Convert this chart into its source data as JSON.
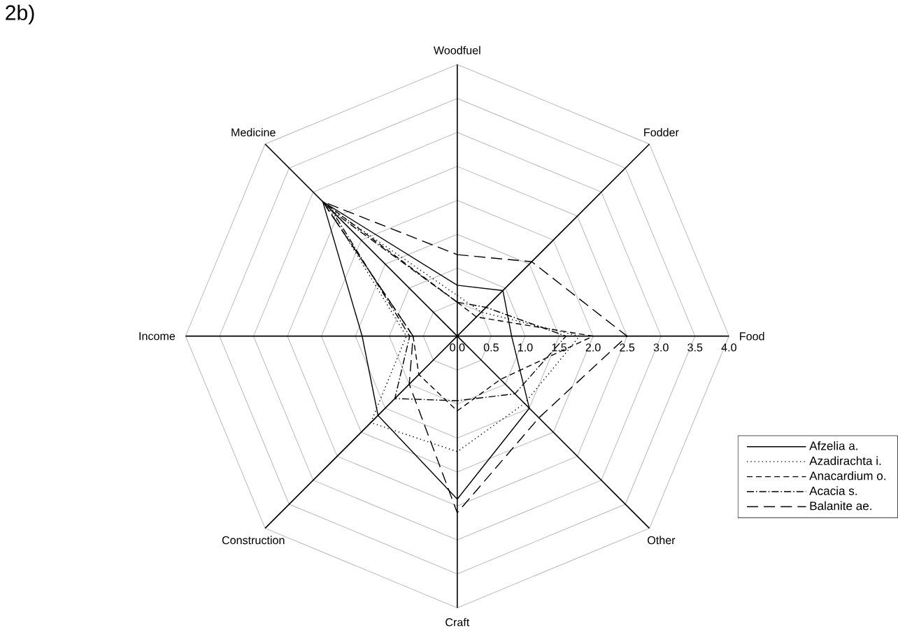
{
  "chart_data": {
    "type": "radar",
    "title": "2b)",
    "categories": [
      "Woodfuel",
      "Fodder",
      "Food",
      "Other",
      "Craft",
      "Construction",
      "Income",
      "Medicine"
    ],
    "ylim": [
      0,
      4
    ],
    "yticks": [
      {
        "value": 0,
        "label": "0.0"
      },
      {
        "value": 0.5,
        "label": "0.5"
      },
      {
        "value": 1,
        "label": "1.0"
      },
      {
        "value": 1.5,
        "label": "1.5"
      },
      {
        "value": 2,
        "label": "2.0"
      },
      {
        "value": 2.5,
        "label": "2.5"
      },
      {
        "value": 3,
        "label": "3.0"
      },
      {
        "value": 3.5,
        "label": "3.5"
      },
      {
        "value": 4,
        "label": "4.0"
      }
    ],
    "grid": true,
    "legend": "bottom right",
    "marker": "none",
    "series": [
      {
        "name": "Afzelia a.",
        "color": "#000000",
        "line_style": "solid",
        "values": [
          0.75,
          0.95,
          0.8,
          1.5,
          2.4,
          1.65,
          1.4,
          2.8
        ]
      },
      {
        "name": "Azadirachta i.",
        "color": "#000000",
        "line_style": "dotted",
        "values": [
          0.6,
          0.5,
          1.8,
          1.4,
          1.7,
          1.8,
          0.75,
          2.7
        ]
      },
      {
        "name": "Anacardium o.",
        "color": "#000000",
        "line_style": "dashed",
        "values": [
          0.5,
          0.4,
          2.0,
          0.9,
          1.1,
          0.8,
          0.65,
          2.8
        ]
      },
      {
        "name": "Acacia s.",
        "color": "#000000",
        "line_style": "dashdot",
        "values": [
          0.5,
          0.6,
          1.6,
          1.2,
          0.95,
          1.3,
          0.7,
          2.6
        ]
      },
      {
        "name": "Balanite ae.",
        "color": "#000000",
        "line_style": "longdash",
        "values": [
          1.2,
          1.55,
          2.5,
          1.7,
          2.6,
          1.0,
          0.65,
          2.8
        ]
      }
    ]
  }
}
